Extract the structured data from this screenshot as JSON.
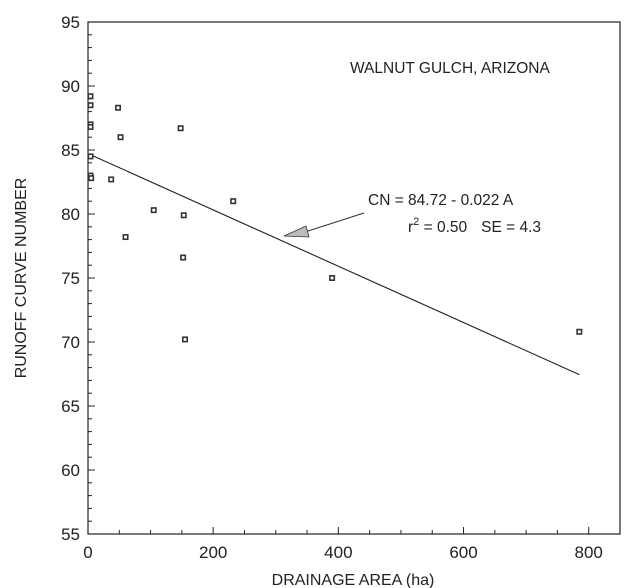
{
  "chart_data": {
    "type": "scatter",
    "title": "",
    "xlabel": "DRAINAGE AREA (ha)",
    "ylabel": "RUNOFF CURVE NUMBER",
    "xlim": [
      0,
      850
    ],
    "ylim": [
      55,
      95
    ],
    "x_ticks": [
      0,
      200,
      400,
      600,
      800
    ],
    "y_ticks": [
      55,
      60,
      65,
      70,
      75,
      80,
      85,
      90,
      95
    ],
    "grid": false,
    "annotations": {
      "location": "WALNUT GULCH, ARIZONA",
      "equation": "CN = 84.72 - 0.022 A",
      "r2_prefix": "r",
      "r2_sup": "2",
      "r2_value": " = 0.50",
      "se": "SE = 4.3"
    },
    "fit_line": {
      "intercept": 84.72,
      "slope": -0.022,
      "x_start": 0,
      "x_end": 785
    },
    "series": [
      {
        "points": [
          {
            "x": 1,
            "y": 89.2
          },
          {
            "x": 2,
            "y": 88.5
          },
          {
            "x": 3,
            "y": 87.0
          },
          {
            "x": 4,
            "y": 86.8
          },
          {
            "x": 1,
            "y": 84.5
          },
          {
            "x": 3,
            "y": 83.0
          },
          {
            "x": 5,
            "y": 82.8
          },
          {
            "x": 37,
            "y": 82.7
          },
          {
            "x": 48,
            "y": 88.3
          },
          {
            "x": 52,
            "y": 86.0
          },
          {
            "x": 60,
            "y": 78.2
          },
          {
            "x": 105,
            "y": 80.3
          },
          {
            "x": 148,
            "y": 86.7
          },
          {
            "x": 153,
            "y": 79.9
          },
          {
            "x": 152,
            "y": 76.6
          },
          {
            "x": 155,
            "y": 70.2
          },
          {
            "x": 232,
            "y": 81.0
          },
          {
            "x": 390,
            "y": 75.0
          },
          {
            "x": 785,
            "y": 70.8
          }
        ]
      }
    ]
  }
}
